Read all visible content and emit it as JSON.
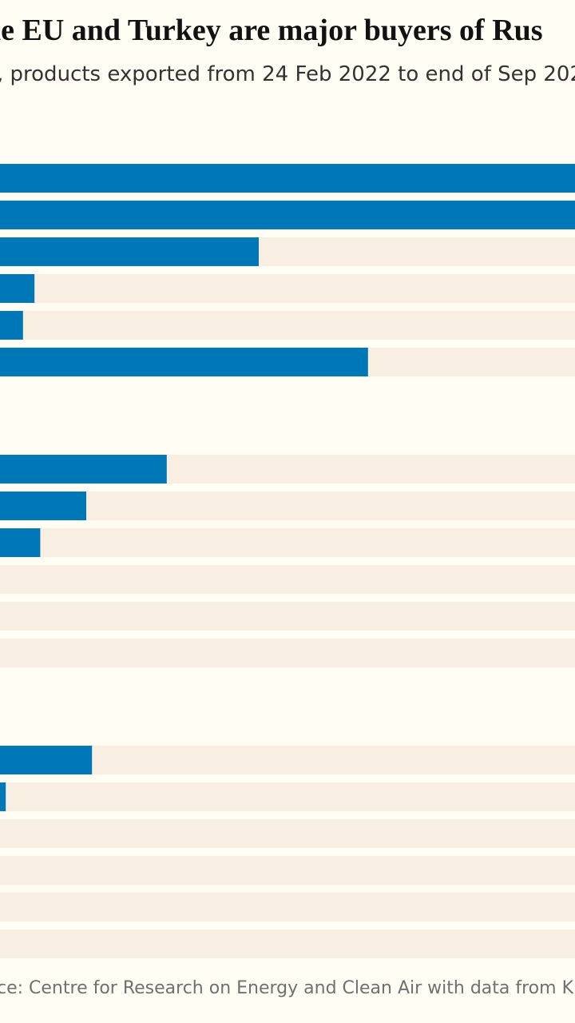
{
  "header": {
    "title": "he EU and Turkey are major buyers of Rus",
    "subtitle": ", products exported from 24 Feb 2022 to end of Sep 202"
  },
  "footer": {
    "source": "ce: Centre for Research on Energy and Clean Air with data from Kpler, E"
  },
  "colors": {
    "bar": "#0077b6",
    "track": "#f8efe2",
    "background": "#fffdf4"
  },
  "chart_data": {
    "type": "bar",
    "orientation": "horizontal",
    "categories": [],
    "groups": [
      {
        "values": [
          100,
          100,
          45,
          6,
          4,
          64
        ]
      },
      {
        "values": [
          29,
          15,
          7,
          0,
          0,
          0
        ]
      },
      {
        "values": [
          16,
          1,
          0,
          0,
          0,
          0
        ]
      }
    ]
  }
}
